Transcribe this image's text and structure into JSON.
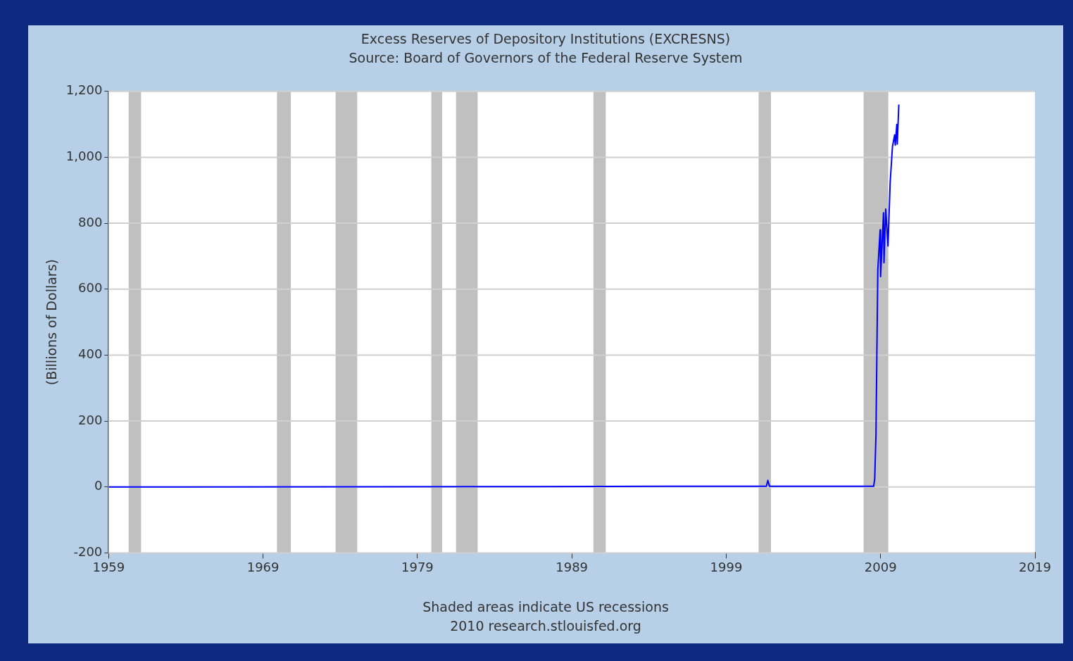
{
  "chart_data": {
    "type": "line",
    "title": "Excess Reserves of Depository Institutions (EXCRESNS)",
    "subtitle": "Source: Board of Governors of the Federal Reserve System",
    "ylabel": "(Billions of Dollars)",
    "annotations": [
      "Shaded areas indicate US recessions",
      "2010 research.stlouisfed.org"
    ],
    "series": [
      {
        "color": "#0000ff",
        "x": [
          1959.0,
          1984.0,
          1995.0,
          2001.6,
          2001.7,
          2001.8,
          2008.55,
          2008.62,
          2008.7,
          2008.82,
          2008.97,
          2009.0,
          2009.19,
          2009.22,
          2009.33,
          2009.48,
          2009.62,
          2009.77,
          2009.91,
          2009.95,
          2010.05,
          2010.08,
          2010.18
        ],
        "values": [
          0,
          1,
          2,
          2,
          20,
          2,
          2,
          25,
          159,
          659,
          780,
          638,
          832,
          680,
          843,
          731,
          924,
          1033,
          1068,
          1037,
          1100,
          1040,
          1160
        ]
      }
    ],
    "xlim": [
      1959,
      2019
    ],
    "xticks": [
      1959,
      1969,
      1979,
      1989,
      1999,
      2009,
      2019
    ],
    "ylim": [
      -200,
      1200
    ],
    "yticks": [
      {
        "value": -200,
        "label": "-200"
      },
      0,
      200,
      400,
      600,
      800,
      {
        "value": 1000,
        "label": "1,000"
      },
      {
        "value": 1200,
        "label": "1,200"
      }
    ],
    "bands": [
      {
        "axis": "x",
        "from": 1960.3,
        "to": 1961.1,
        "color": "#c0c0c0"
      },
      {
        "axis": "x",
        "from": 1969.9,
        "to": 1970.8,
        "color": "#c0c0c0"
      },
      {
        "axis": "x",
        "from": 1973.7,
        "to": 1975.1,
        "color": "#c0c0c0"
      },
      {
        "axis": "x",
        "from": 1979.9,
        "to": 1980.6,
        "color": "#c0c0c0"
      },
      {
        "axis": "x",
        "from": 1981.5,
        "to": 1982.9,
        "color": "#c0c0c0"
      },
      {
        "axis": "x",
        "from": 1990.4,
        "to": 1991.2,
        "color": "#c0c0c0"
      },
      {
        "axis": "x",
        "from": 2001.1,
        "to": 2001.9,
        "color": "#c0c0c0"
      },
      {
        "axis": "x",
        "from": 2007.9,
        "to": 2009.5,
        "color": "#c0c0c0"
      }
    ],
    "grid": "y",
    "marker": "none",
    "line_style": "solid"
  }
}
